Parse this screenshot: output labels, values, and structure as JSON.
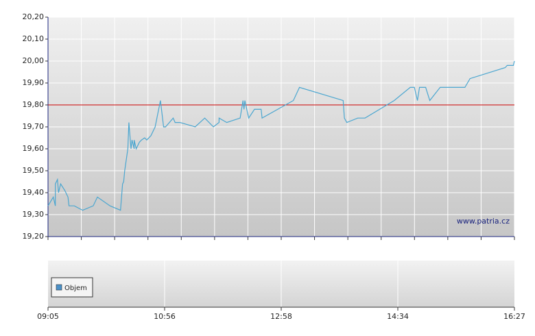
{
  "chart_data": {
    "type": "line",
    "x": [
      545,
      550,
      552,
      552,
      554,
      555,
      557,
      561,
      564,
      565,
      570,
      578,
      588,
      592,
      604,
      614,
      616,
      617,
      618,
      621,
      622,
      624,
      625,
      627,
      627,
      629,
      632,
      634,
      637,
      639,
      643,
      647,
      652,
      655,
      657,
      665,
      667,
      672,
      688,
      698,
      707,
      713,
      713,
      721,
      735,
      738,
      739,
      740,
      744,
      750,
      757,
      758,
      788,
      793,
      829,
      830,
      832,
      841,
      847,
      871,
      886,
      890,
      893,
      895,
      901,
      905,
      915,
      939,
      944,
      978,
      980,
      986,
      987
    ],
    "values": [
      19.34,
      19.38,
      19.34,
      19.44,
      19.46,
      19.4,
      19.44,
      19.41,
      19.38,
      19.34,
      19.34,
      19.32,
      19.34,
      19.38,
      19.34,
      19.32,
      19.44,
      19.45,
      19.5,
      19.6,
      19.72,
      19.6,
      19.64,
      19.6,
      19.64,
      19.6,
      19.63,
      19.64,
      19.65,
      19.64,
      19.66,
      19.7,
      19.82,
      19.7,
      19.7,
      19.74,
      19.72,
      19.72,
      19.7,
      19.74,
      19.7,
      19.72,
      19.74,
      19.72,
      19.74,
      19.82,
      19.78,
      19.82,
      19.74,
      19.78,
      19.78,
      19.74,
      19.82,
      19.88,
      19.82,
      19.74,
      19.72,
      19.74,
      19.74,
      19.82,
      19.88,
      19.88,
      19.82,
      19.88,
      19.88,
      19.82,
      19.88,
      19.88,
      19.92,
      19.97,
      19.98,
      19.98,
      20.0
    ],
    "color": "#4aa6d0",
    "ylim": [
      19.2,
      20.2
    ],
    "yticks": [
      {
        "value": 19.2,
        "label": "19,20"
      },
      {
        "value": 19.3,
        "label": "19,30"
      },
      {
        "value": 19.4,
        "label": "19,40"
      },
      {
        "value": 19.5,
        "label": "19,50"
      },
      {
        "value": 19.6,
        "label": "19,60"
      },
      {
        "value": 19.7,
        "label": "19,70"
      },
      {
        "value": 19.8,
        "label": "19,80"
      },
      {
        "value": 19.9,
        "label": "19,90"
      },
      {
        "value": 20.0,
        "label": "20,00"
      },
      {
        "value": 20.1,
        "label": "20,10"
      },
      {
        "value": 20.2,
        "label": "20,20"
      }
    ],
    "xlim": [
      545,
      987
    ],
    "xticks": [
      {
        "value": 545,
        "label": "09:05"
      },
      {
        "value": 656,
        "label": "10:56"
      },
      {
        "value": 778,
        "label": "12:58"
      },
      {
        "value": 874,
        "label": "14:34"
      },
      {
        "value": 987,
        "label": "16:27"
      }
    ],
    "grid": true,
    "reference_line": {
      "value": 19.8,
      "color": "#cc0000"
    },
    "annotation": "www.patria.cz",
    "volume_legend": {
      "name": "Objem",
      "color": "#4a90c8"
    }
  }
}
